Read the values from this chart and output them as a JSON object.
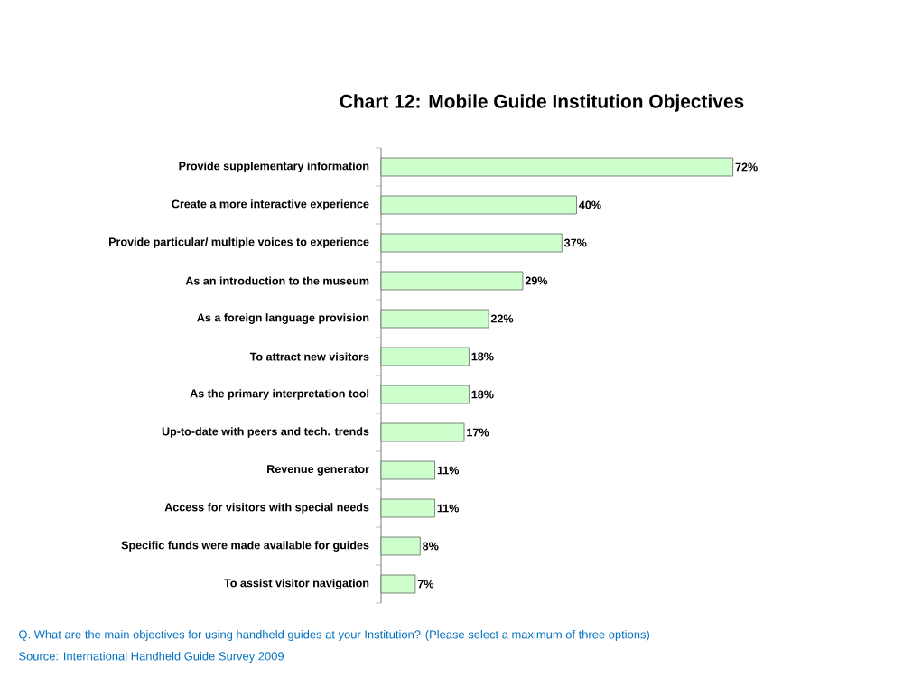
{
  "chart_data": {
    "type": "bar",
    "orientation": "horizontal",
    "title": "Chart 12: Mobile Guide Institution Objectives",
    "categories": [
      "Provide supplementary information",
      "Create a more interactive experience",
      "Provide particular/ multiple voices to experience",
      "As an introduction to the museum",
      "As a foreign language provision",
      "To attract new visitors",
      "As the primary interpretation tool",
      "Up-to-date with peers and tech. trends",
      "Revenue generator",
      "Access for visitors with special needs",
      "Specific funds were made available for guides",
      "To assist visitor navigation"
    ],
    "values": [
      72,
      40,
      37,
      29,
      22,
      18,
      18,
      17,
      11,
      11,
      8,
      7
    ],
    "value_labels": [
      "72%",
      "40%",
      "37%",
      "29%",
      "22%",
      "18%",
      "18%",
      "17%",
      "11%",
      "11%",
      "8%",
      "7%"
    ],
    "color": "#ccffcc",
    "annotations": [
      "Q. What are the main objectives for using handheld guides at your Institution? (Please select a maximum of three options)",
      "Source: International Handheld Guide Survey 2009"
    ]
  }
}
